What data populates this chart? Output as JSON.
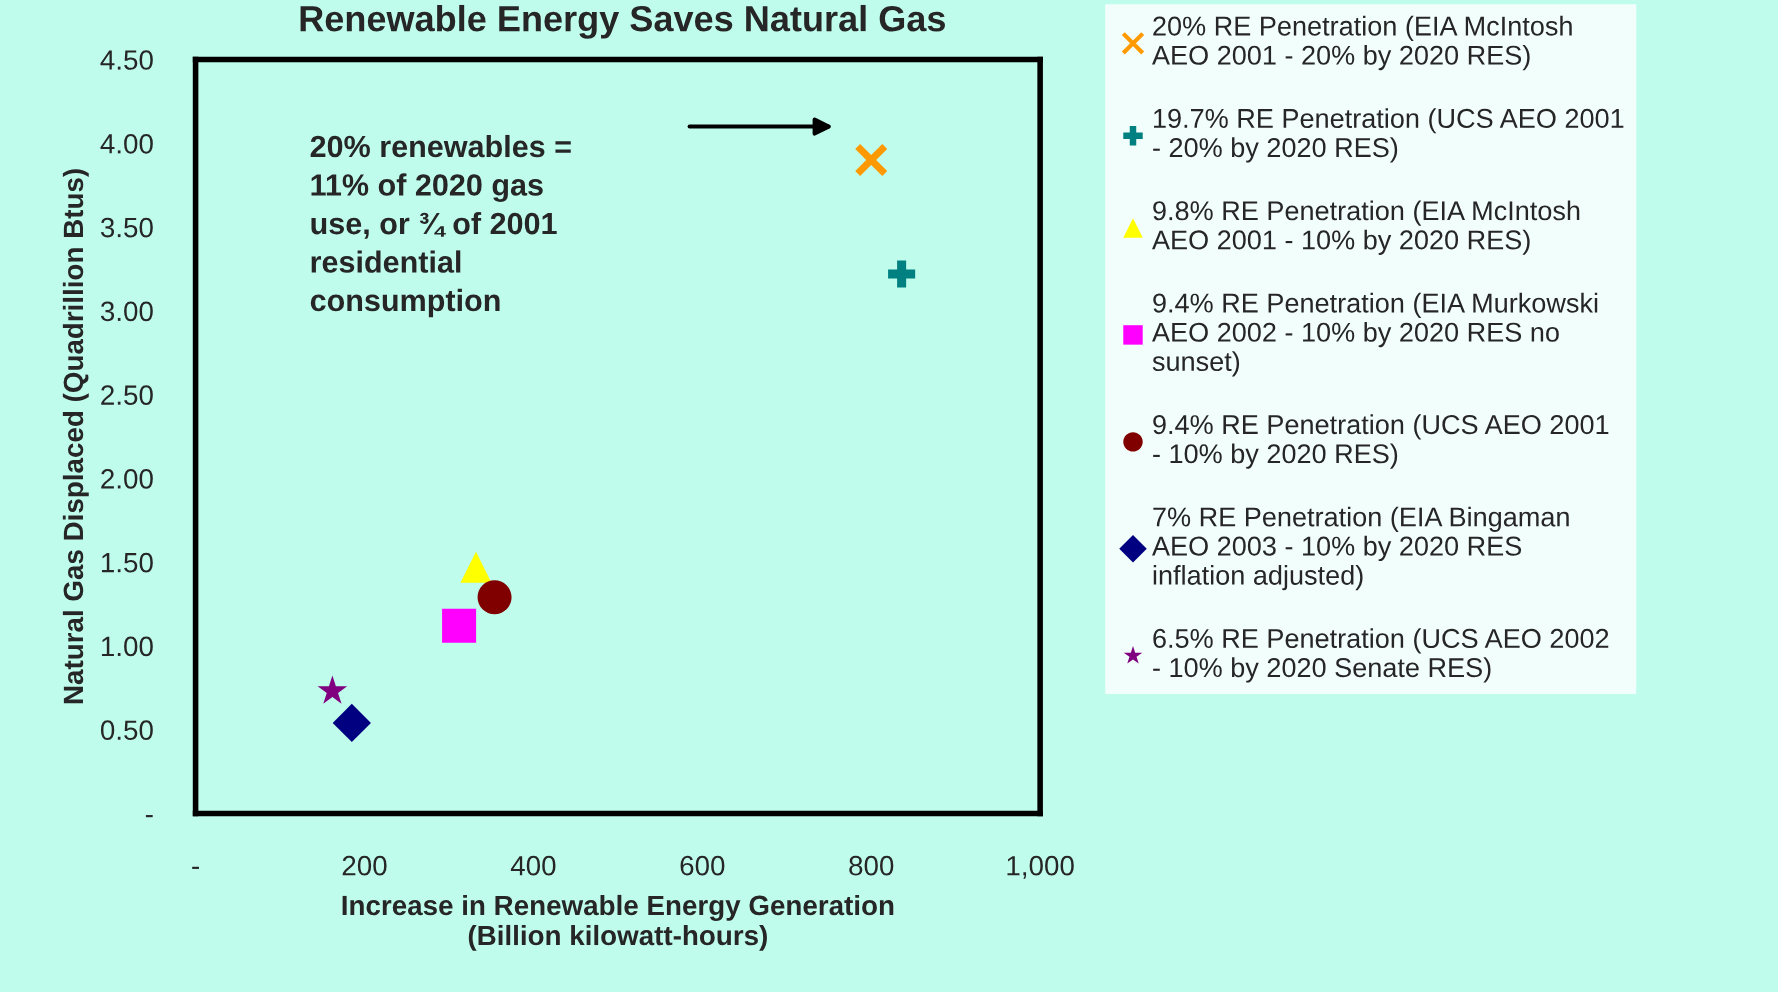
{
  "chart_data": {
    "type": "scatter",
    "title": "Renewable Energy Saves Natural Gas",
    "xlabel": "Increase in Renewable Energy Generation\n(Billion kilowatt-hours)",
    "ylabel": "Natural Gas Displaced (Quadrillion Btus)",
    "xlim": [
      0,
      1000
    ],
    "xticks": [
      {
        "value": 0,
        "label": "-"
      },
      200,
      400,
      600,
      800,
      {
        "value": 1000,
        "label": "1,000"
      }
    ],
    "ylim": [
      0,
      4.5
    ],
    "yticks": [
      {
        "value": 0,
        "label": "-"
      },
      {
        "value": 0.5,
        "label": "0.50"
      },
      {
        "value": 1.0,
        "label": "1.00"
      },
      {
        "value": 1.5,
        "label": "1.50"
      },
      {
        "value": 2.0,
        "label": "2.00"
      },
      {
        "value": 2.5,
        "label": "2.50"
      },
      {
        "value": 3.0,
        "label": "3.00"
      },
      {
        "value": 3.5,
        "label": "3.50"
      },
      {
        "value": 4.0,
        "label": "4.00"
      },
      {
        "value": 4.5,
        "label": "4.50"
      }
    ],
    "grid": false,
    "legend": "right",
    "annotations": [
      "20% renewables = \n11% of 2020 gas \nuse, or ¾ of 2001 \nresidential \nconsumption"
    ],
    "series": [
      {
        "name": "20% RE Penetration (EIA McIntosh AEO 2001 - 20% by 2020 RES)",
        "color": "#ff9900",
        "marker": "cross",
        "x": [
          800
        ],
        "values": [
          3.9
        ]
      },
      {
        "name": "19.7% RE Penetration (UCS AEO 2001 - 20% by 2020 RES)",
        "color": "#008080",
        "marker": "plus",
        "x": [
          836
        ],
        "values": [
          3.22
        ]
      },
      {
        "name": "9.8% RE Penetration (EIA McIntosh AEO 2001 - 10% by 2020 RES)",
        "color": "#ffff00",
        "marker": "triangle",
        "x": [
          332
        ],
        "values": [
          1.47
        ]
      },
      {
        "name": "9.4% RE Penetration (EIA Murkowski AEO 2002 - 10% by 2020 RES no sunset)",
        "color": "#ff00ff",
        "marker": "square",
        "x": [
          312
        ],
        "values": [
          1.12
        ]
      },
      {
        "name": "9.4% RE Penetration (UCS AEO 2001 - 10% by 2020 RES)",
        "color": "#800000",
        "marker": "circle",
        "x": [
          354
        ],
        "values": [
          1.29
        ]
      },
      {
        "name": "7% RE Penetration (EIA Bingaman AEO 2003 - 10% by 2020 RES inflation adjusted)",
        "color": "#000080",
        "marker": "diamond",
        "x": [
          185
        ],
        "values": [
          0.54
        ]
      },
      {
        "name": "6.5% RE Penetration (UCS AEO 2002 - 10% by 2020 Senate RES)",
        "color": "#800080",
        "marker": "star",
        "x": [
          162
        ],
        "values": [
          0.73
        ]
      }
    ]
  }
}
